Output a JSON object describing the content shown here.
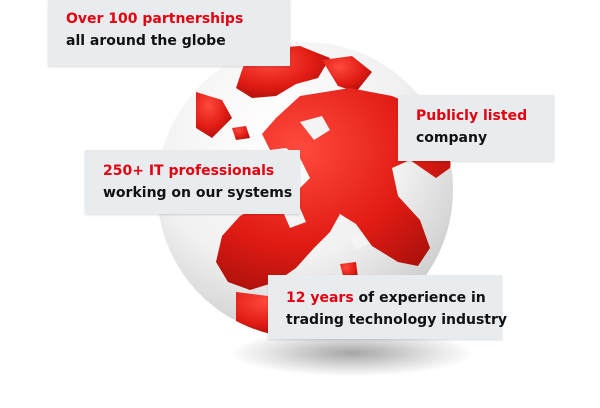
{
  "colors": {
    "accent": "#e3000f",
    "card_bg": "#e9ecef",
    "text": "#111111"
  },
  "globe": {
    "icon": "globe-icon"
  },
  "cards": [
    {
      "highlight": "Over 100 partnerships",
      "text": "all around the globe"
    },
    {
      "highlight": "Publicly listed",
      "text": "company"
    },
    {
      "highlight": "250+ IT professionals",
      "text": "working on our systems"
    },
    {
      "highlight": "12 years",
      "text_inline": " of experience in",
      "text": "trading technology industry"
    }
  ]
}
